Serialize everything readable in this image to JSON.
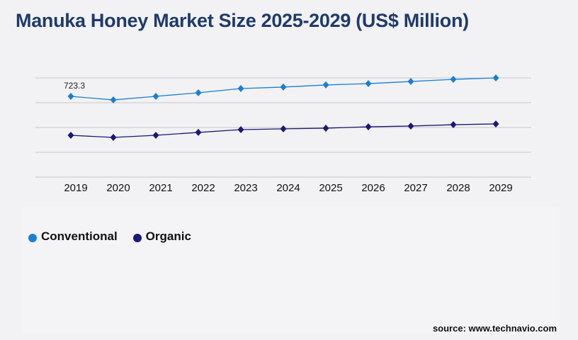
{
  "title": "Manuka Honey Market Size 2025-2029 (US$ Million)",
  "source": "source: www.technavio.com",
  "chart_data": {
    "type": "line",
    "title": "Manuka Honey Market Size 2025-2029 (US$ Million)",
    "categories": [
      "2019",
      "2020",
      "2021",
      "2022",
      "2023",
      "2024",
      "2025",
      "2026",
      "2027",
      "2028",
      "2029"
    ],
    "ylim": [
      0,
      888
    ],
    "grid": true,
    "legend_position": "bottom-left",
    "series": [
      {
        "name": "Conventional",
        "color": "#1a7fd4",
        "values": [
          723.3,
          691,
          723,
          755,
          793,
          806,
          825,
          837,
          856,
          875,
          888
        ]
      },
      {
        "name": "Organic",
        "color": "#1a1878",
        "values": [
          374,
          355,
          374,
          400,
          425,
          432,
          438,
          450,
          457,
          469,
          476
        ]
      }
    ],
    "annotations": [
      {
        "series": "Conventional",
        "category": "2019",
        "label": "723.3"
      }
    ]
  }
}
